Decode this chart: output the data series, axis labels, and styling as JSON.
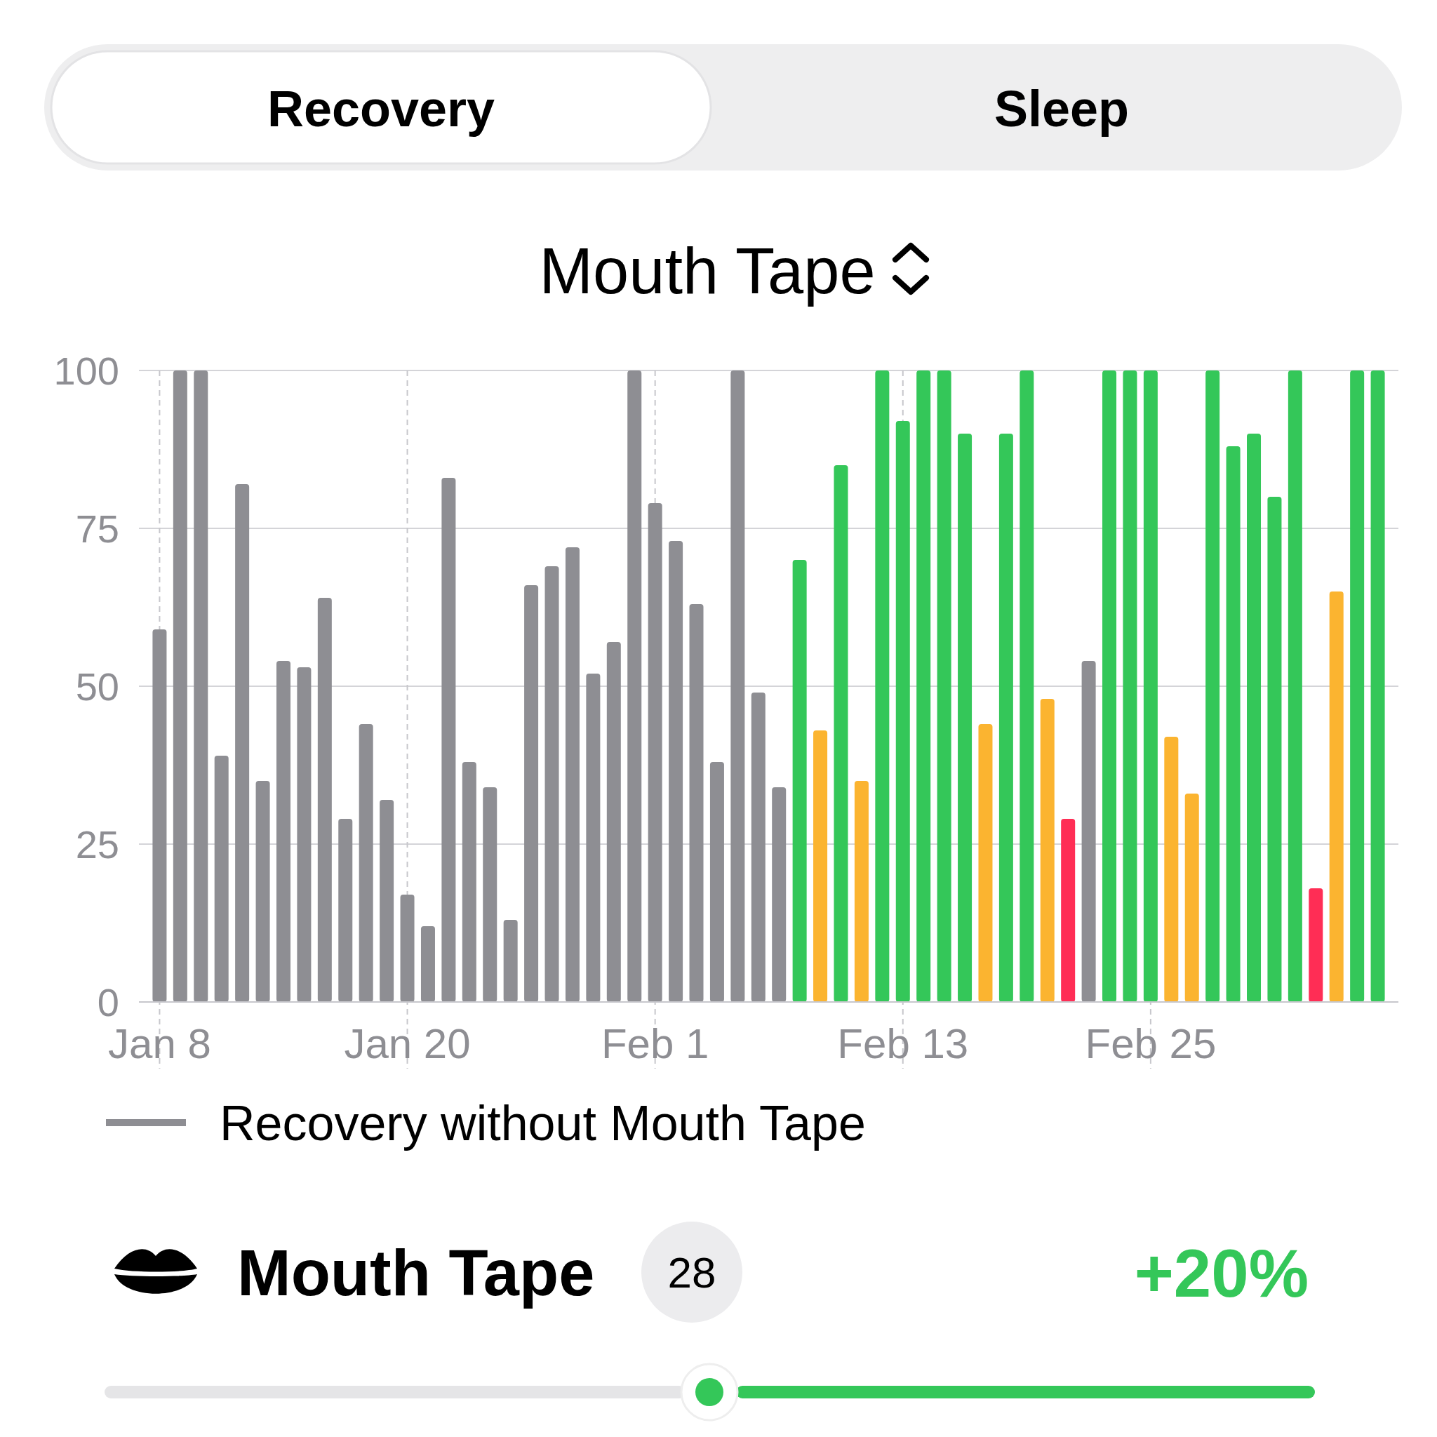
{
  "chart_data": {
    "type": "bar",
    "title": "Mouth Tape",
    "x": [
      "--01-08",
      "--01-09",
      "--01-10",
      "--01-11",
      "--01-12",
      "--01-13",
      "--01-14",
      "--01-15",
      "--01-16",
      "--01-17",
      "--01-18",
      "--01-19",
      "--01-20",
      "--01-21",
      "--01-22",
      "--01-23",
      "--01-24",
      "--01-25",
      "--01-26",
      "--01-27",
      "--01-28",
      "--01-29",
      "--01-30",
      "--01-31",
      "--02-01",
      "--02-02",
      "--02-03",
      "--02-04",
      "--02-05",
      "--02-06",
      "--02-07",
      "--02-08",
      "--02-09",
      "--02-10",
      "--02-11",
      "--02-12",
      "--02-13",
      "--02-14",
      "--02-15",
      "--02-16",
      "--02-17",
      "--02-18",
      "--02-19",
      "--02-20",
      "--02-21",
      "--02-22",
      "--02-23",
      "--02-24",
      "--02-25",
      "--02-26",
      "--02-27",
      "--02-28",
      "--02-29",
      "--03-01",
      "--03-02",
      "--03-03",
      "--03-04",
      "--03-05",
      "--03-06",
      "--03-07"
    ],
    "series": [
      {
        "name": "Recovery without Mouth Tape",
        "color": "#8e8e93",
        "values": [
          59,
          100,
          100,
          39,
          82,
          35,
          54,
          53,
          64,
          29,
          44,
          32,
          17,
          12,
          83,
          38,
          34,
          13,
          66,
          69,
          72,
          52,
          57,
          100,
          79,
          73,
          63,
          38,
          100,
          49,
          34,
          null,
          null,
          null,
          null,
          null,
          null,
          null,
          null,
          null,
          null,
          null,
          null,
          null,
          null,
          54,
          null,
          null,
          null,
          null,
          null,
          null,
          null,
          null,
          null,
          null,
          null,
          null,
          null,
          null
        ]
      },
      {
        "values": [
          null,
          null,
          null,
          null,
          null,
          null,
          null,
          null,
          null,
          null,
          null,
          null,
          null,
          null,
          null,
          null,
          null,
          null,
          null,
          null,
          null,
          null,
          null,
          null,
          null,
          null,
          null,
          null,
          null,
          null,
          null,
          70,
          43,
          85,
          35,
          100,
          92,
          100,
          100,
          90,
          44,
          90,
          100,
          48,
          29,
          null,
          100,
          100,
          100,
          42,
          33,
          100,
          88,
          90,
          80,
          100,
          18,
          65,
          100,
          100
        ],
        "colors": [
          null,
          null,
          null,
          null,
          null,
          null,
          null,
          null,
          null,
          null,
          null,
          null,
          null,
          null,
          null,
          null,
          null,
          null,
          null,
          null,
          null,
          null,
          null,
          null,
          null,
          null,
          null,
          null,
          null,
          null,
          null,
          "#34c759",
          "#fbb430",
          "#34c759",
          "#fbb430",
          "#34c759",
          "#34c759",
          "#34c759",
          "#34c759",
          "#34c759",
          "#fbb430",
          "#34c759",
          "#34c759",
          "#fbb430",
          "#ff2d55",
          null,
          "#34c759",
          "#34c759",
          "#34c759",
          "#fbb430",
          "#fbb430",
          "#34c759",
          "#34c759",
          "#34c759",
          "#34c759",
          "#34c759",
          "#ff2d55",
          "#fbb430",
          "#34c759",
          "#34c759"
        ]
      }
    ],
    "xlim": [
      "--01-07",
      "--03-08"
    ],
    "xticks": [
      {
        "value": "--01-08",
        "label": "Jan 8"
      },
      {
        "value": "--01-20",
        "label": "Jan 20"
      },
      {
        "value": "--02-01",
        "label": "Feb 1"
      },
      {
        "value": "--02-13",
        "label": "Feb 13"
      },
      {
        "value": "--02-25",
        "label": "Feb 25"
      }
    ],
    "ylim": [
      0,
      100
    ],
    "yticks": [
      0,
      25,
      50,
      75,
      100
    ],
    "grid": true,
    "legend": "bottom left",
    "annotations": [
      "Recovery",
      "Sleep",
      "Mouth Tape",
      "28",
      "+20%"
    ]
  }
}
